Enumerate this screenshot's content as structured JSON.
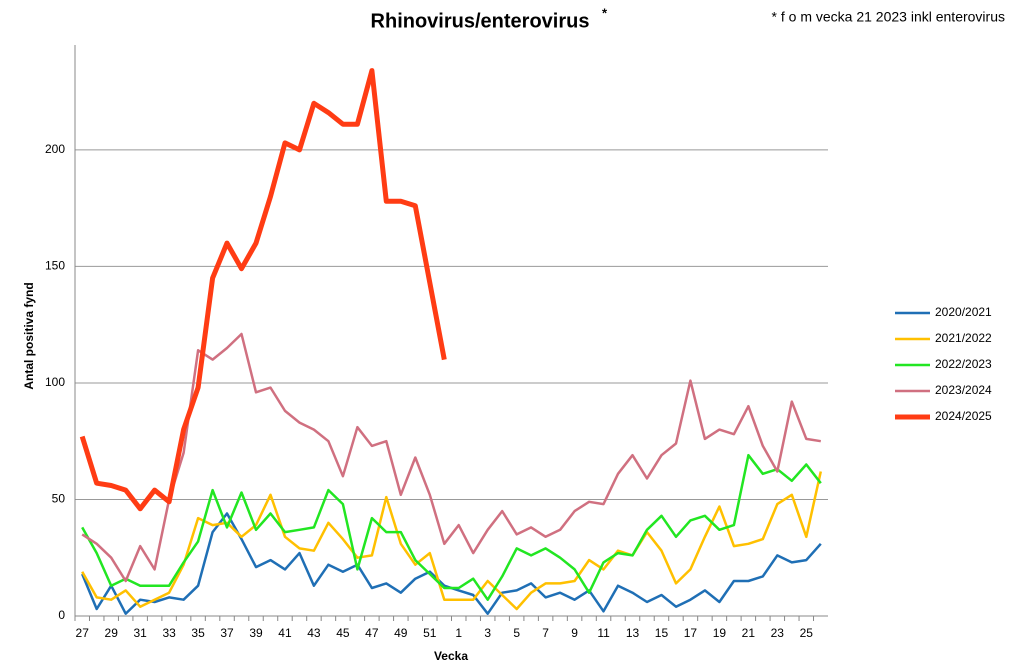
{
  "chart_data": {
    "type": "line",
    "title": "Rhinovirus/enterovirus",
    "title_note": "*",
    "annotation": "* f o m vecka 21 2023 inkl  enterovirus",
    "xlabel": "Vecka",
    "ylabel": "Antal positiva fynd",
    "categories": [
      "27",
      null,
      "29",
      null,
      "31",
      null,
      "33",
      null,
      "35",
      null,
      "37",
      null,
      "39",
      null,
      "41",
      null,
      "43",
      null,
      "45",
      null,
      "47",
      null,
      "49",
      null,
      "51",
      null,
      "1",
      null,
      "3",
      null,
      "5",
      null,
      "7",
      null,
      "9",
      null,
      "11",
      null,
      "13",
      null,
      "15",
      null,
      "17",
      null,
      "19",
      null,
      "21",
      null,
      "23",
      null,
      "25",
      null
    ],
    "ylim": [
      0,
      245
    ],
    "yticks": [
      0,
      50,
      100,
      150,
      200
    ],
    "grid": true,
    "legend": "right",
    "series": [
      {
        "name": "2020/2021",
        "color": "#1f6fb5",
        "values": [
          18,
          3,
          13,
          1,
          7,
          6,
          8,
          7,
          13,
          36,
          44,
          33,
          21,
          24,
          20,
          27,
          13,
          22,
          19,
          22,
          12,
          14,
          10,
          16,
          19,
          13,
          11,
          9,
          1,
          10,
          11,
          14,
          8,
          10,
          7,
          11,
          2,
          13,
          10,
          6,
          9,
          4,
          7,
          11,
          6,
          15,
          15,
          17,
          26,
          23,
          24,
          31
        ]
      },
      {
        "name": "2021/2022",
        "color": "#ffc000",
        "values": [
          19,
          8,
          7,
          11,
          4,
          7,
          10,
          22,
          42,
          39,
          40,
          34,
          39,
          52,
          34,
          29,
          28,
          40,
          33,
          25,
          26,
          51,
          31,
          22,
          27,
          7,
          7,
          7,
          15,
          9,
          3,
          10,
          14,
          14,
          15,
          24,
          20,
          28,
          26,
          36,
          28,
          14,
          20,
          34,
          47,
          30,
          31,
          33,
          48,
          52,
          34,
          62
        ]
      },
      {
        "name": "2022/2023",
        "color": "#22e622",
        "values": [
          38,
          27,
          13,
          16,
          13,
          13,
          13,
          23,
          32,
          54,
          38,
          53,
          37,
          44,
          36,
          37,
          38,
          54,
          48,
          20,
          42,
          36,
          36,
          24,
          18,
          12,
          12,
          16,
          7,
          17,
          29,
          26,
          29,
          25,
          20,
          10,
          23,
          27,
          26,
          37,
          43,
          34,
          41,
          43,
          37,
          39,
          69,
          61,
          63,
          58,
          65,
          57
        ]
      },
      {
        "name": "2023/2024",
        "color": "#d07080",
        "values": [
          35,
          31,
          25,
          15,
          30,
          20,
          50,
          70,
          114,
          110,
          115,
          121,
          96,
          98,
          88,
          83,
          80,
          75,
          60,
          81,
          73,
          75,
          52,
          68,
          52,
          31,
          39,
          27,
          37,
          45,
          35,
          38,
          34,
          37,
          45,
          49,
          48,
          61,
          69,
          59,
          69,
          74,
          101,
          76,
          80,
          78,
          90,
          73,
          62,
          92,
          76,
          75
        ]
      },
      {
        "name": "2024/2025",
        "color": "#ff3c14",
        "width": 5,
        "values": [
          77,
          57,
          56,
          54,
          46,
          54,
          49,
          80,
          98,
          145,
          160,
          149,
          160,
          180,
          203,
          200,
          220,
          216,
          211,
          211,
          234,
          178,
          178,
          176,
          143,
          110,
          null,
          null,
          null,
          null,
          null,
          null,
          null,
          null,
          null,
          null,
          null,
          null,
          null,
          null,
          null,
          null,
          null,
          null,
          null,
          null,
          null,
          null,
          null,
          null,
          null,
          null
        ]
      }
    ]
  }
}
